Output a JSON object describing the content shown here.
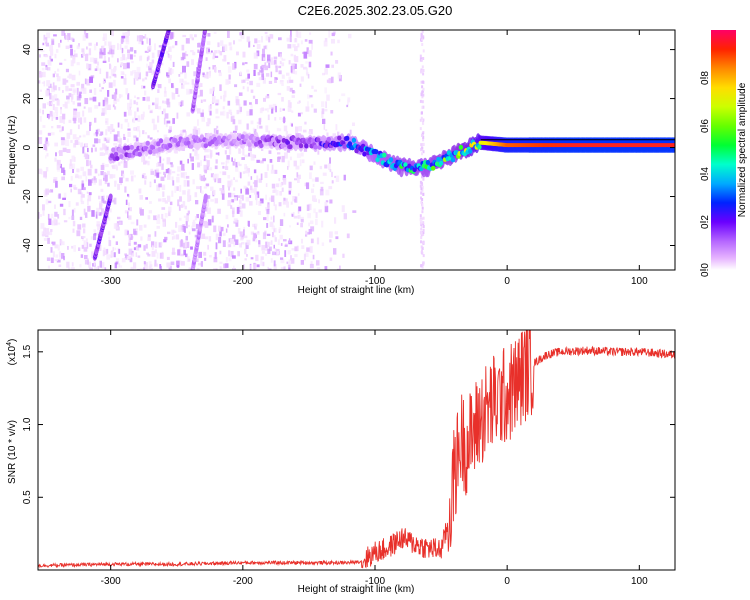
{
  "title": "C2E6.2025.302.23.05.G20",
  "colors": {
    "background": "#ffffff",
    "axis": "#000000",
    "snr_line": "#e8302a",
    "colormap": [
      "#ffffff",
      "#f2d8ff",
      "#d9a6ff",
      "#b566ff",
      "#8a2be2",
      "#4400ff",
      "#0033ff",
      "#00aaff",
      "#00ffcc",
      "#33ff00",
      "#ccff00",
      "#ffee00",
      "#ff9900",
      "#ff3300",
      "#ff0066"
    ]
  },
  "chart_data": [
    {
      "type": "heatmap",
      "xlabel": "Height of straight line (km)",
      "ylabel": "Frequency (Hz)",
      "xlim": [
        -355,
        127
      ],
      "ylim": [
        -50,
        48
      ],
      "xticks": [
        -300,
        -200,
        -100,
        0,
        100
      ],
      "xtick_labels": [
        "-300",
        "-200",
        "-100",
        "0",
        "100"
      ],
      "yticks": [
        -40,
        -20,
        0,
        20,
        40
      ],
      "ytick_labels": [
        "-40",
        "-20",
        "0",
        "20",
        "40"
      ],
      "colorbar": {
        "label": "Normalized spectral amplitude",
        "range": [
          0,
          1
        ],
        "ticks": [
          0.0,
          0.2,
          0.4,
          0.6,
          0.8
        ],
        "tick_labels": [
          "0.0",
          "0.2",
          "0.4",
          "0.6",
          "0.8"
        ]
      },
      "ridge": {
        "x": [
          -300,
          -250,
          -200,
          -150,
          -120,
          -100,
          -80,
          -60,
          -40,
          -20,
          0,
          50,
          100,
          127
        ],
        "frequency": [
          -3,
          2,
          3,
          2,
          2,
          -3,
          -8,
          -8,
          -3,
          2,
          1,
          1,
          1,
          1
        ],
        "amplitude": [
          0.25,
          0.2,
          0.2,
          0.3,
          0.4,
          0.5,
          0.55,
          0.55,
          0.6,
          0.75,
          0.9,
          0.95,
          0.95,
          0.95
        ]
      },
      "streaks": [
        {
          "x": [
            -312,
            -300
          ],
          "frequency": [
            -45,
            -20
          ],
          "amplitude": 0.3
        },
        {
          "x": [
            -268,
            -255
          ],
          "frequency": [
            25,
            50
          ],
          "amplitude": 0.3
        },
        {
          "x": [
            -238,
            -228
          ],
          "frequency": [
            15,
            50
          ],
          "amplitude": 0.22
        },
        {
          "x": [
            -238,
            -228
          ],
          "frequency": [
            -50,
            -20
          ],
          "amplitude": 0.18
        }
      ]
    },
    {
      "type": "line",
      "xlabel": "Height of straight line (km)",
      "ylabel": "SNR (10 * v/v)",
      "scale_label": "(x10",
      "scale_exponent": "4",
      "xlim": [
        -355,
        127
      ],
      "ylim": [
        0,
        1.65
      ],
      "xticks": [
        -300,
        -200,
        -100,
        0,
        100
      ],
      "xtick_labels": [
        "-300",
        "-200",
        "-100",
        "0",
        "100"
      ],
      "yticks": [
        0.5,
        1.0,
        1.5
      ],
      "ytick_labels": [
        "0.5",
        "1.0",
        "1.5"
      ],
      "series": [
        {
          "name": "SNR",
          "x": [
            -355,
            -300,
            -250,
            -200,
            -150,
            -120,
            -110,
            -100,
            -90,
            -80,
            -70,
            -60,
            -50,
            -45,
            -40,
            -35,
            -30,
            -25,
            -20,
            -15,
            -10,
            -5,
            0,
            5,
            10,
            15,
            20,
            30,
            40,
            60,
            80,
            100,
            127
          ],
          "values": [
            0.03,
            0.04,
            0.04,
            0.05,
            0.05,
            0.05,
            0.06,
            0.12,
            0.15,
            0.22,
            0.18,
            0.15,
            0.14,
            0.3,
            0.65,
            0.9,
            0.85,
            0.95,
            1.05,
            1.1,
            1.15,
            1.18,
            1.2,
            1.25,
            1.32,
            1.38,
            1.42,
            1.48,
            1.5,
            1.51,
            1.5,
            1.5,
            1.48
          ]
        }
      ]
    }
  ]
}
